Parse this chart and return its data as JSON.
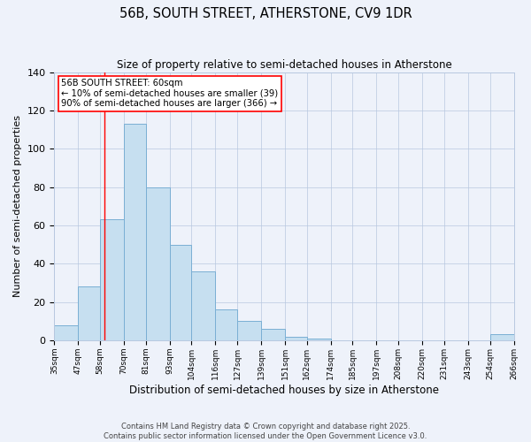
{
  "title": "56B, SOUTH STREET, ATHERSTONE, CV9 1DR",
  "subtitle": "Size of property relative to semi-detached houses in Atherstone",
  "xlabel": "Distribution of semi-detached houses by size in Atherstone",
  "ylabel": "Number of semi-detached properties",
  "bar_color": "#c6dff0",
  "bar_edge_color": "#7aafd4",
  "background_color": "#eef2fa",
  "bins": [
    35,
    47,
    58,
    70,
    81,
    93,
    104,
    116,
    127,
    139,
    151,
    162,
    174,
    185,
    197,
    208,
    220,
    231,
    243,
    254,
    266
  ],
  "counts": [
    8,
    28,
    63,
    113,
    80,
    50,
    36,
    16,
    10,
    6,
    2,
    1,
    0,
    0,
    0,
    0,
    0,
    0,
    0,
    3
  ],
  "tick_labels": [
    "35sqm",
    "47sqm",
    "58sqm",
    "70sqm",
    "81sqm",
    "93sqm",
    "104sqm",
    "116sqm",
    "127sqm",
    "139sqm",
    "151sqm",
    "162sqm",
    "174sqm",
    "185sqm",
    "197sqm",
    "208sqm",
    "220sqm",
    "231sqm",
    "243sqm",
    "254sqm",
    "266sqm"
  ],
  "property_label": "56B SOUTH STREET: 60sqm",
  "pct_smaller": 10,
  "count_smaller": 39,
  "pct_larger": 90,
  "count_larger": 366,
  "vline_x": 60,
  "ylim": [
    0,
    140
  ],
  "yticks": [
    0,
    20,
    40,
    60,
    80,
    100,
    120,
    140
  ],
  "footer_line1": "Contains HM Land Registry data © Crown copyright and database right 2025.",
  "footer_line2": "Contains public sector information licensed under the Open Government Licence v3.0."
}
